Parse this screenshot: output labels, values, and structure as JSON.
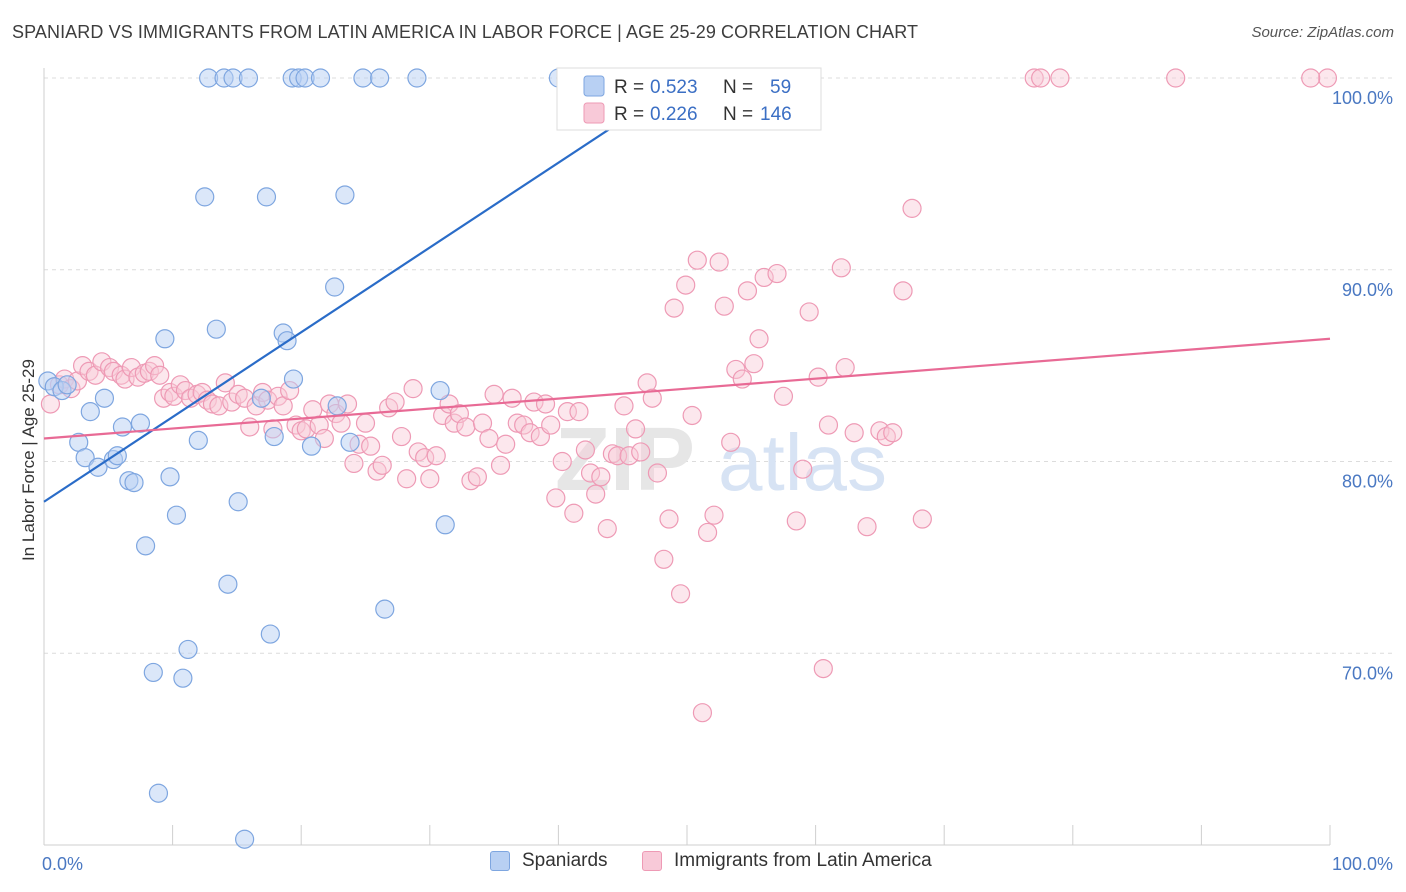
{
  "header": {
    "title": "SPANIARD VS IMMIGRANTS FROM LATIN AMERICA IN LABOR FORCE | AGE 25-29 CORRELATION CHART",
    "source": "Source: ZipAtlas.com"
  },
  "colors": {
    "blue_fill": "#b8d0f3",
    "blue_stroke": "#7ea6e0",
    "blue_line": "#2a6cc8",
    "pink_fill": "#f8c9d8",
    "pink_stroke": "#ee9ab5",
    "pink_line": "#e86a95",
    "tick_text": "#4a78c2",
    "grid": "#dcdcdc"
  },
  "legend": {
    "rows": [
      {
        "r_label": "R =",
        "r_value": "0.523",
        "n_label": "N =",
        "n_value": "59"
      },
      {
        "r_label": "R =",
        "r_value": "0.226",
        "n_label": "N =",
        "n_value": "146"
      }
    ]
  },
  "bottom_legend": {
    "spaniards": "Spaniards",
    "immigrants": "Immigrants from Latin America"
  },
  "watermark": {
    "zip": "ZIP",
    "atlas": "atlas"
  },
  "chart_data": {
    "type": "scatter",
    "ylabel": "In Labor Force | Age 25-29",
    "xlim": [
      0,
      100
    ],
    "ylim": [
      60,
      100
    ],
    "x_tick_labels": [
      "0.0%",
      "100.0%"
    ],
    "y_ticks": [
      70,
      80,
      90,
      100
    ],
    "y_tick_labels": [
      "70.0%",
      "80.0%",
      "90.0%",
      "100.0%"
    ],
    "grid": true,
    "legend_position": "top-center",
    "series": [
      {
        "name": "Spaniards",
        "R": 0.523,
        "N": 59,
        "trend": {
          "x": [
            0,
            50
          ],
          "y": 77.9,
          "y_end": 100.0
        },
        "points": [
          [
            0.3,
            84.2
          ],
          [
            0.8,
            83.9
          ],
          [
            1.4,
            83.7
          ],
          [
            1.8,
            84.0
          ],
          [
            2.7,
            81.0
          ],
          [
            3.2,
            80.2
          ],
          [
            3.6,
            82.6
          ],
          [
            4.2,
            79.7
          ],
          [
            4.7,
            83.3
          ],
          [
            5.4,
            80.1
          ],
          [
            5.7,
            80.3
          ],
          [
            6.1,
            81.8
          ],
          [
            6.6,
            79.0
          ],
          [
            7.0,
            78.9
          ],
          [
            7.5,
            82.0
          ],
          [
            7.9,
            75.6
          ],
          [
            8.5,
            69.0
          ],
          [
            8.9,
            62.7
          ],
          [
            9.4,
            86.4
          ],
          [
            9.8,
            79.2
          ],
          [
            10.3,
            77.2
          ],
          [
            10.8,
            68.7
          ],
          [
            11.2,
            70.2
          ],
          [
            12.0,
            81.1
          ],
          [
            12.5,
            93.8
          ],
          [
            12.8,
            100.0
          ],
          [
            13.4,
            86.9
          ],
          [
            14.0,
            100.0
          ],
          [
            14.3,
            73.6
          ],
          [
            14.7,
            100.0
          ],
          [
            15.1,
            77.9
          ],
          [
            15.6,
            60.3
          ],
          [
            15.9,
            100.0
          ],
          [
            16.9,
            83.3
          ],
          [
            17.3,
            93.8
          ],
          [
            17.6,
            71.0
          ],
          [
            17.9,
            81.3
          ],
          [
            18.6,
            86.7
          ],
          [
            18.9,
            86.3
          ],
          [
            19.4,
            84.3
          ],
          [
            19.3,
            100.0
          ],
          [
            19.8,
            100.0
          ],
          [
            20.3,
            100.0
          ],
          [
            20.8,
            80.8
          ],
          [
            21.5,
            100.0
          ],
          [
            22.6,
            89.1
          ],
          [
            22.8,
            82.9
          ],
          [
            23.4,
            93.9
          ],
          [
            23.8,
            81.0
          ],
          [
            24.8,
            100.0
          ],
          [
            26.1,
            100.0
          ],
          [
            26.5,
            72.3
          ],
          [
            29.0,
            100.0
          ],
          [
            30.8,
            83.7
          ],
          [
            31.2,
            76.7
          ],
          [
            40.0,
            100.0
          ],
          [
            41.5,
            100.0
          ],
          [
            47.0,
            100.0
          ],
          [
            50.0,
            100.0
          ]
        ]
      },
      {
        "name": "Immigrants from Latin America",
        "R": 0.226,
        "N": 146,
        "trend": {
          "x": [
            0,
            100
          ],
          "y": 81.2,
          "y_end": 86.4
        },
        "points": [
          [
            0.5,
            83.0
          ],
          [
            1.2,
            84.0
          ],
          [
            1.6,
            84.3
          ],
          [
            2.1,
            83.8
          ],
          [
            2.6,
            84.2
          ],
          [
            3.0,
            85.0
          ],
          [
            3.5,
            84.7
          ],
          [
            4.0,
            84.5
          ],
          [
            4.5,
            85.2
          ],
          [
            5.1,
            84.9
          ],
          [
            5.4,
            84.7
          ],
          [
            6.0,
            84.5
          ],
          [
            6.3,
            84.3
          ],
          [
            6.8,
            84.9
          ],
          [
            7.3,
            84.4
          ],
          [
            7.8,
            84.6
          ],
          [
            8.2,
            84.7
          ],
          [
            8.6,
            85.0
          ],
          [
            9.0,
            84.5
          ],
          [
            9.3,
            83.3
          ],
          [
            9.8,
            83.6
          ],
          [
            10.1,
            83.4
          ],
          [
            10.6,
            84.0
          ],
          [
            11.0,
            83.7
          ],
          [
            11.4,
            83.3
          ],
          [
            11.9,
            83.5
          ],
          [
            12.3,
            83.6
          ],
          [
            12.7,
            83.2
          ],
          [
            13.1,
            83.0
          ],
          [
            13.6,
            82.9
          ],
          [
            14.1,
            84.1
          ],
          [
            14.6,
            83.1
          ],
          [
            15.1,
            83.5
          ],
          [
            15.6,
            83.3
          ],
          [
            16.0,
            81.8
          ],
          [
            16.5,
            82.9
          ],
          [
            17.0,
            83.6
          ],
          [
            17.4,
            83.2
          ],
          [
            17.8,
            81.7
          ],
          [
            18.2,
            83.4
          ],
          [
            18.6,
            82.9
          ],
          [
            19.1,
            83.7
          ],
          [
            19.6,
            81.9
          ],
          [
            20.0,
            81.6
          ],
          [
            20.4,
            81.7
          ],
          [
            20.9,
            82.7
          ],
          [
            21.4,
            81.9
          ],
          [
            21.8,
            81.2
          ],
          [
            22.2,
            83.0
          ],
          [
            22.7,
            82.5
          ],
          [
            23.1,
            82.0
          ],
          [
            23.6,
            83.0
          ],
          [
            24.1,
            79.9
          ],
          [
            24.5,
            80.9
          ],
          [
            25.0,
            82.0
          ],
          [
            25.4,
            80.8
          ],
          [
            25.9,
            79.5
          ],
          [
            26.3,
            79.8
          ],
          [
            26.8,
            82.8
          ],
          [
            27.3,
            83.1
          ],
          [
            27.8,
            81.3
          ],
          [
            28.2,
            79.1
          ],
          [
            28.7,
            83.8
          ],
          [
            29.1,
            80.5
          ],
          [
            29.6,
            80.2
          ],
          [
            30.0,
            79.1
          ],
          [
            30.5,
            80.3
          ],
          [
            31.0,
            82.4
          ],
          [
            31.5,
            83.0
          ],
          [
            31.9,
            82.0
          ],
          [
            32.3,
            82.5
          ],
          [
            32.8,
            81.8
          ],
          [
            33.2,
            79.0
          ],
          [
            33.7,
            79.2
          ],
          [
            34.1,
            82.0
          ],
          [
            34.6,
            81.2
          ],
          [
            35.0,
            83.5
          ],
          [
            35.5,
            79.8
          ],
          [
            35.9,
            80.9
          ],
          [
            36.4,
            83.3
          ],
          [
            36.8,
            82.0
          ],
          [
            37.3,
            81.9
          ],
          [
            37.8,
            81.5
          ],
          [
            38.1,
            83.1
          ],
          [
            38.6,
            81.3
          ],
          [
            39.0,
            83.0
          ],
          [
            39.4,
            81.9
          ],
          [
            39.8,
            78.1
          ],
          [
            40.3,
            80.0
          ],
          [
            40.7,
            82.6
          ],
          [
            41.2,
            77.3
          ],
          [
            41.6,
            82.6
          ],
          [
            42.1,
            80.6
          ],
          [
            42.5,
            79.4
          ],
          [
            42.9,
            78.3
          ],
          [
            43.3,
            79.2
          ],
          [
            43.8,
            76.5
          ],
          [
            44.2,
            80.4
          ],
          [
            44.6,
            80.3
          ],
          [
            45.1,
            82.9
          ],
          [
            45.5,
            80.3
          ],
          [
            46.0,
            81.7
          ],
          [
            46.4,
            80.5
          ],
          [
            46.9,
            84.1
          ],
          [
            47.3,
            83.3
          ],
          [
            47.7,
            79.4
          ],
          [
            48.2,
            74.9
          ],
          [
            48.6,
            77.0
          ],
          [
            49.0,
            88.0
          ],
          [
            49.5,
            73.1
          ],
          [
            49.9,
            89.2
          ],
          [
            50.4,
            82.4
          ],
          [
            50.8,
            90.5
          ],
          [
            51.2,
            66.9
          ],
          [
            51.6,
            76.3
          ],
          [
            52.1,
            77.2
          ],
          [
            52.5,
            90.4
          ],
          [
            52.9,
            88.1
          ],
          [
            53.4,
            81.0
          ],
          [
            53.8,
            84.8
          ],
          [
            54.3,
            84.3
          ],
          [
            54.7,
            88.9
          ],
          [
            55.2,
            85.1
          ],
          [
            55.6,
            86.4
          ],
          [
            56.0,
            89.6
          ],
          [
            56.5,
            98.2
          ],
          [
            57.0,
            89.8
          ],
          [
            57.5,
            83.4
          ],
          [
            58.5,
            76.9
          ],
          [
            59.0,
            79.6
          ],
          [
            59.5,
            87.8
          ],
          [
            60.2,
            84.4
          ],
          [
            60.6,
            69.2
          ],
          [
            61.0,
            81.9
          ],
          [
            62.0,
            90.1
          ],
          [
            62.3,
            84.9
          ],
          [
            63.0,
            81.5
          ],
          [
            64.0,
            76.6
          ],
          [
            65.0,
            81.6
          ],
          [
            65.5,
            81.3
          ],
          [
            66.0,
            81.5
          ],
          [
            66.8,
            88.9
          ],
          [
            67.5,
            93.2
          ],
          [
            68.3,
            77.0
          ],
          [
            77.0,
            100.0
          ],
          [
            77.5,
            100.0
          ],
          [
            79.0,
            100.0
          ],
          [
            88.0,
            100.0
          ],
          [
            99.8,
            100.0
          ],
          [
            98.5,
            100.0
          ]
        ]
      }
    ]
  }
}
